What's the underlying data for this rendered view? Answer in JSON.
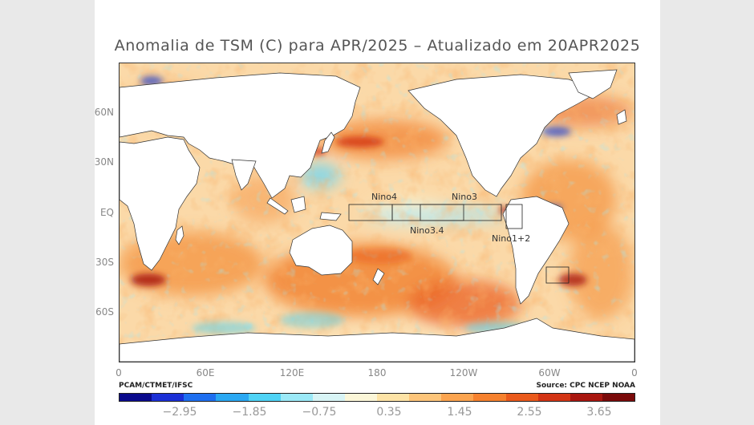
{
  "title": "Anomalia de TSM (C) para APR/2025 – Atualizado em 20APR2025",
  "lat_labels": [
    "60N",
    "30N",
    "EQ",
    "30S",
    "60S"
  ],
  "lon_labels": [
    "0",
    "60E",
    "120E",
    "180",
    "120W",
    "60W",
    "0"
  ],
  "regions": {
    "nino4": "Nino4",
    "nino3": "Nino3",
    "nino34": "Nino3.4",
    "nino12": "Nino1+2"
  },
  "credit_left": "PCAM/CTMET/IFSC",
  "credit_right": "Source: CPC NCEP NOAA",
  "colorbar": {
    "labels": [
      "−2.95",
      "−1.85",
      "−0.75",
      "0.35",
      "1.45",
      "2.55",
      "3.65"
    ],
    "colors": [
      "#0a0a8c",
      "#1b2fd6",
      "#1e6ff0",
      "#2aa8f2",
      "#4fd3f5",
      "#9be9f7",
      "#d8f4f5",
      "#fbf6d8",
      "#fde3a6",
      "#fdc57a",
      "#fba44f",
      "#f6812e",
      "#ea5a1c",
      "#d33414",
      "#a91710",
      "#7a0a0a"
    ]
  },
  "colors": {
    "land": "#ffffff",
    "ocean_base": "#fbd9a8",
    "warm": "#f28a3c",
    "hot": "#d3341a",
    "cool": "#6fd6f2",
    "cold": "#1e3fd0"
  }
}
